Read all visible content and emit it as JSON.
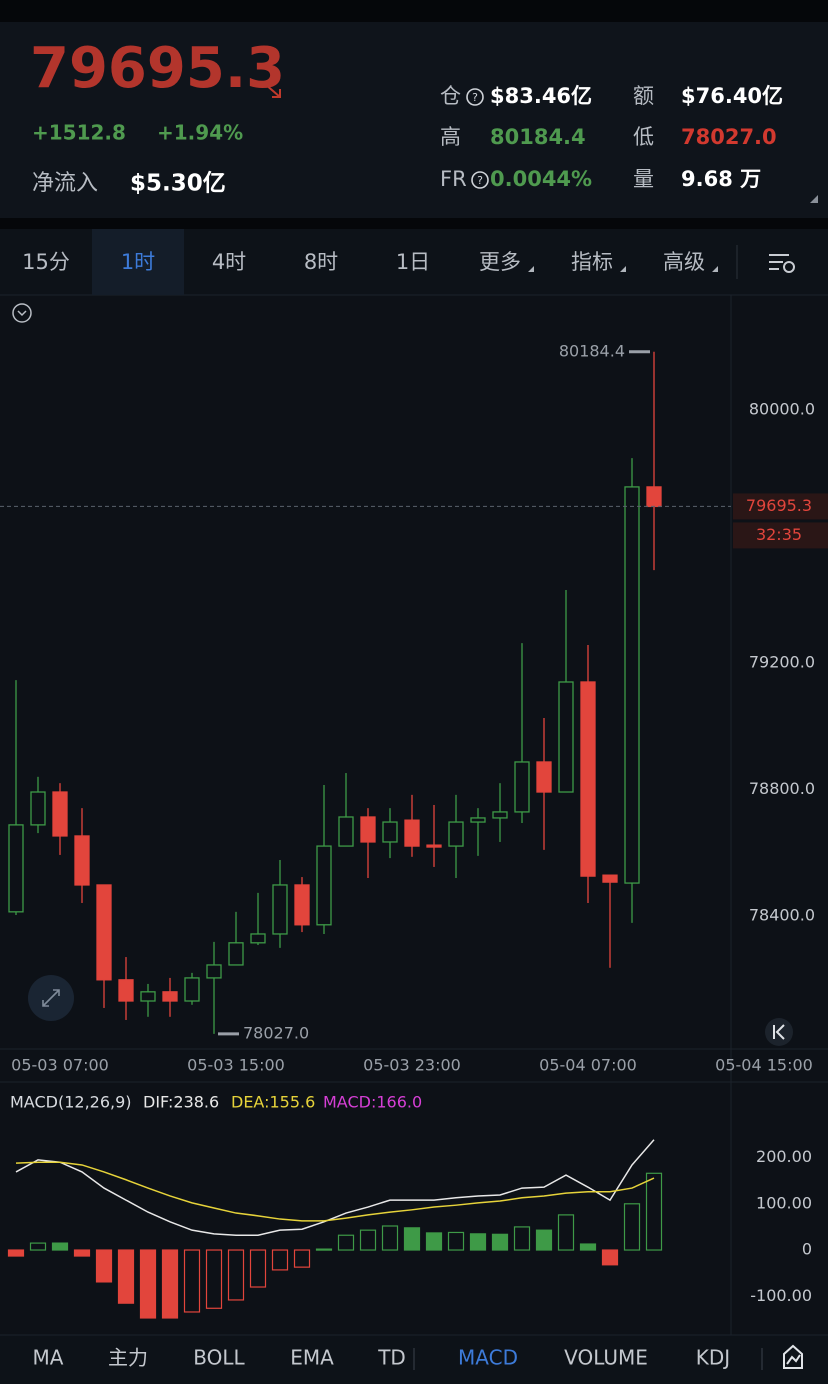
{
  "header": {
    "price": "79695.3",
    "change": "+1512.8",
    "change_pct": "+1.94%",
    "net_inflow_label": "净流入",
    "net_inflow": "$5.30亿",
    "stats": [
      {
        "label": "仓",
        "value": "$83.46亿",
        "color": "#ffffff"
      },
      {
        "label": "额",
        "value": "$76.40亿",
        "color": "#ffffff"
      },
      {
        "label": "高",
        "value": "80184.4",
        "color": "#4f9a4f"
      },
      {
        "label": "低",
        "value": "78027.0",
        "color": "#d2392f"
      },
      {
        "label": "FR",
        "value": "0.0044%",
        "color": "#4f9a4f"
      },
      {
        "label": "量",
        "value": "9.68 万",
        "color": "#ffffff"
      }
    ]
  },
  "tabs": [
    "15分",
    "1时",
    "4时",
    "8时",
    "1日",
    "更多",
    "指标",
    "高级"
  ],
  "active_tab": 1,
  "chart_data": [
    {
      "type": "candlestick",
      "categories": [
        null,
        null,
        "05-03 07:00",
        null,
        null,
        null,
        null,
        null,
        null,
        null,
        "05-03 15:00",
        null,
        null,
        null,
        null,
        null,
        null,
        null,
        "05-03 23:00",
        null,
        null,
        null,
        null,
        null,
        null,
        null,
        "05-04 07:00",
        null,
        null,
        null,
        null,
        null,
        null,
        null,
        "05-04 15:00"
      ],
      "open": [
        78413,
        78688,
        78792,
        78653,
        78498,
        78198,
        78131,
        78160,
        78131,
        78204,
        78245,
        78315,
        78343,
        78498,
        78372,
        78621,
        78713,
        78634,
        78703,
        78624,
        78621,
        78697,
        78710,
        78729,
        78887,
        78792,
        79140,
        78529,
        78504,
        79757,
        null,
        null,
        null,
        null,
        null
      ],
      "high": [
        79146,
        78840,
        78820,
        78741,
        78498,
        78270,
        78185,
        78204,
        78220,
        78318,
        78413,
        78473,
        78577,
        78523,
        78814,
        78852,
        78741,
        78741,
        78783,
        78751,
        78783,
        78741,
        78820,
        79263,
        79026,
        79431,
        79257,
        78529,
        79848,
        80184.4,
        null,
        null,
        null,
        null,
        null
      ],
      "low": [
        78403,
        78662,
        78593,
        78441,
        78109,
        78071,
        78081,
        78081,
        78119,
        78027,
        78245,
        78308,
        78299,
        78349,
        78343,
        78621,
        78520,
        78583,
        78587,
        78555,
        78520,
        78590,
        78634,
        78694,
        78609,
        78792,
        78441,
        78236,
        78378,
        79494,
        null,
        null,
        null,
        null,
        null
      ],
      "close": [
        78688,
        78792,
        78653,
        78498,
        78198,
        78131,
        78160,
        78131,
        78204,
        78245,
        78315,
        78343,
        78498,
        78372,
        78621,
        78713,
        78634,
        78697,
        78621,
        78618,
        78697,
        78710,
        78729,
        78887,
        78792,
        79140,
        78526,
        78507,
        79757,
        79695.3,
        null,
        null,
        null,
        null,
        null
      ],
      "up_color": "#3e9a47",
      "down_color": "#e2453c",
      "ylim": [
        77976,
        80364
      ],
      "yticks": [
        {
          "value": 78400,
          "label": "78400.0"
        },
        {
          "value": 78800,
          "label": "78800.0"
        },
        {
          "value": 79200,
          "label": "79200.0"
        },
        {
          "value": 80000,
          "label": "80000.0"
        }
      ],
      "annotations": [
        {
          "value": 80184.4,
          "label": "80184.4"
        },
        {
          "value": 78027,
          "label": "78027.0"
        }
      ],
      "last_price": 79695.3,
      "countdown": "32:35"
    },
    {
      "type": "macd",
      "title": "MACD(12,26,9)",
      "series": [
        {
          "name": "DIF:238.6",
          "color": "#e8e8e8",
          "values": [
            169,
            195,
            190,
            169,
            134,
            108,
            82,
            61,
            43,
            35,
            32,
            32,
            43,
            45,
            61,
            80,
            93,
            108,
            108,
            108,
            113,
            117,
            119,
            134,
            136,
            162,
            136,
            108,
            184,
            238.6,
            null,
            null,
            null,
            null,
            null
          ]
        },
        {
          "name": "DEA:155.6",
          "color": "#e6d33a",
          "values": [
            188,
            190,
            190,
            184,
            169,
            152,
            134,
            117,
            102,
            91,
            80,
            74,
            67,
            63,
            63,
            69,
            76,
            82,
            87,
            93,
            97,
            102,
            106,
            113,
            117,
            123,
            126,
            126,
            134,
            155.6,
            null,
            null,
            null,
            null,
            null
          ]
        },
        {
          "name": "MACD:166.0",
          "color": "#d63fd6",
          "values": [
            -13,
            15,
            15,
            -13,
            -69,
            -115,
            -147,
            -147,
            -134,
            -126,
            -108,
            -80,
            -43,
            -37,
            2,
            32,
            43,
            52,
            48,
            37,
            38,
            35,
            34,
            50,
            43,
            76,
            13,
            -32,
            100,
            166,
            null,
            null,
            null,
            null,
            null
          ]
        }
      ],
      "up_color": "#3e9a47",
      "down_color": "#e2453c",
      "ylim": [
        -173,
        357
      ],
      "yticks": [
        {
          "value": -100,
          "label": "-100.00"
        },
        0,
        {
          "value": 100,
          "label": "100.00"
        },
        {
          "value": 200,
          "label": "200.00"
        }
      ]
    }
  ],
  "indicator_tabs": [
    "MA",
    "主力",
    "BOLL",
    "EMA",
    "TD",
    "MACD",
    "VOLUME",
    "KDJ"
  ],
  "active_indicator": 5
}
